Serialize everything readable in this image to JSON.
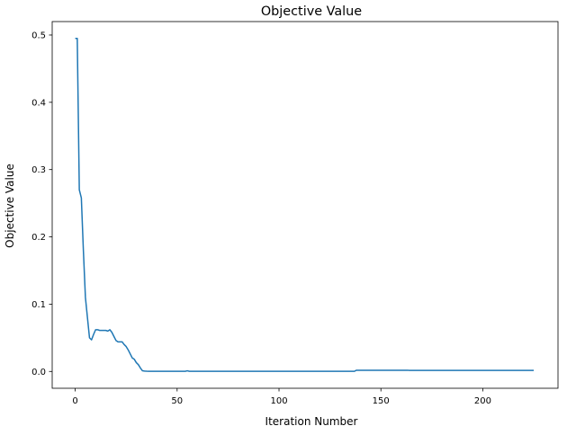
{
  "chart_data": {
    "type": "line",
    "title": "Objective Value",
    "xlabel": "Iteration Number",
    "ylabel": "Objective Value",
    "xlim": [
      -11.3,
      236.9
    ],
    "ylim": [
      -0.025,
      0.52
    ],
    "xticks": [
      0,
      50,
      100,
      150,
      200
    ],
    "xtick_labels": [
      "0",
      "50",
      "100",
      "150",
      "200"
    ],
    "yticks": [
      0.0,
      0.1,
      0.2,
      0.3,
      0.4,
      0.5
    ],
    "ytick_labels": [
      "0.0",
      "0.1",
      "0.2",
      "0.3",
      "0.4",
      "0.5"
    ],
    "grid": false,
    "color": "#1f77b4",
    "series": [
      {
        "x": [
          0,
          1,
          2,
          3,
          4,
          5,
          6,
          7,
          8,
          9,
          10,
          11,
          12,
          13,
          14,
          15,
          16,
          17,
          18,
          19,
          20,
          21,
          22,
          23,
          24,
          25,
          26,
          27,
          28,
          29,
          30,
          31,
          32,
          33,
          34,
          35,
          36,
          40,
          54,
          55,
          56,
          60,
          100,
          137,
          138,
          150,
          163,
          164,
          200,
          225
        ],
        "y": [
          0.495,
          0.495,
          0.27,
          0.258,
          0.18,
          0.11,
          0.08,
          0.05,
          0.047,
          0.055,
          0.062,
          0.062,
          0.061,
          0.061,
          0.061,
          0.061,
          0.06,
          0.062,
          0.058,
          0.052,
          0.046,
          0.044,
          0.044,
          0.044,
          0.04,
          0.037,
          0.032,
          0.026,
          0.02,
          0.018,
          0.013,
          0.01,
          0.005,
          0.001,
          0.0005,
          0.0003,
          0.0002,
          0.0002,
          0.0002,
          0.001,
          0.0002,
          0.0002,
          0.0002,
          0.0002,
          0.0018,
          0.0018,
          0.0018,
          0.0015,
          0.0015,
          0.0015
        ]
      }
    ]
  }
}
